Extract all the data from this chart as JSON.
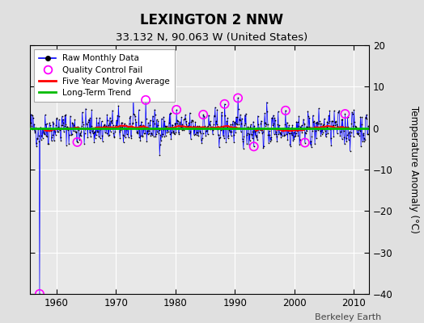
{
  "title": "LEXINGTON 2 NNW",
  "subtitle": "33.132 N, 90.063 W (United States)",
  "ylabel": "Temperature Anomaly (°C)",
  "watermark": "Berkeley Earth",
  "xlim": [
    1955.5,
    2012.5
  ],
  "ylim": [
    -40,
    20
  ],
  "yticks": [
    -40,
    -30,
    -20,
    -10,
    0,
    10,
    20
  ],
  "xticks": [
    1960,
    1970,
    1980,
    1990,
    2000,
    2010
  ],
  "background_color": "#e0e0e0",
  "plot_bg_color": "#e8e8e8",
  "grid_color": "#ffffff",
  "raw_line_color": "#0000ff",
  "raw_dot_color": "#000000",
  "qc_fail_color": "#ff00ff",
  "moving_avg_color": "#ff0000",
  "trend_color": "#00bb00",
  "seed": 42,
  "n_points": 684,
  "start_year": 1955.5,
  "spike_idx": 20,
  "spike_value": -40.0
}
